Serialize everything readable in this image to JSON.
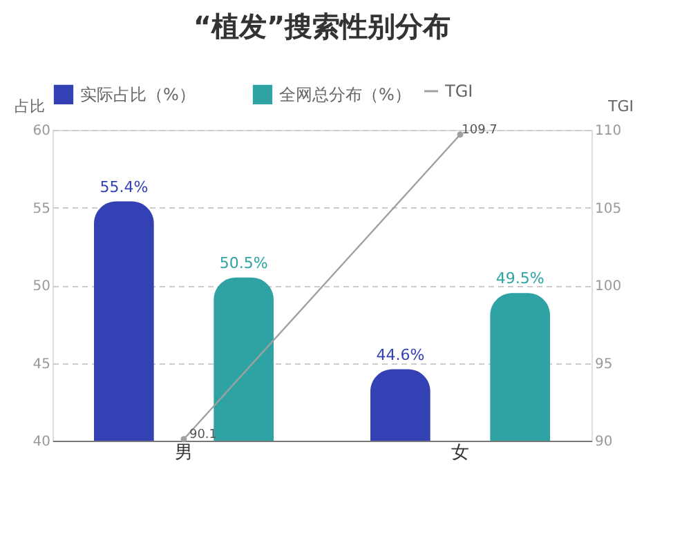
{
  "chart_data": {
    "type": "bar",
    "title": "“植发”搜索性别分布",
    "ylabel": "占比",
    "y2label": "TGI",
    "categories": [
      "男",
      "女"
    ],
    "series": [
      {
        "name": "实际占比（%）",
        "color": "#3341b5",
        "values": [
          55.4,
          44.6
        ],
        "value_labels": [
          "55.4%",
          "44.6%"
        ]
      },
      {
        "name": "全网总分布（%）",
        "color": "#2fa3a4",
        "values": [
          50.5,
          49.5
        ],
        "value_labels": [
          "50.5%",
          "49.5%"
        ]
      },
      {
        "name": "TGI",
        "type": "line",
        "axis": "y2",
        "color": "#a0a0a0",
        "marker": "circle",
        "values": [
          90.1,
          109.7
        ],
        "value_labels": [
          "90.1",
          "109.7"
        ]
      }
    ],
    "ylim": [
      40,
      60
    ],
    "yticks": [
      40,
      45,
      50,
      55,
      60
    ],
    "y2lim": [
      90,
      110
    ],
    "y2ticks": [
      90,
      95,
      100,
      105,
      110
    ],
    "grid": "y",
    "legend": "top"
  }
}
